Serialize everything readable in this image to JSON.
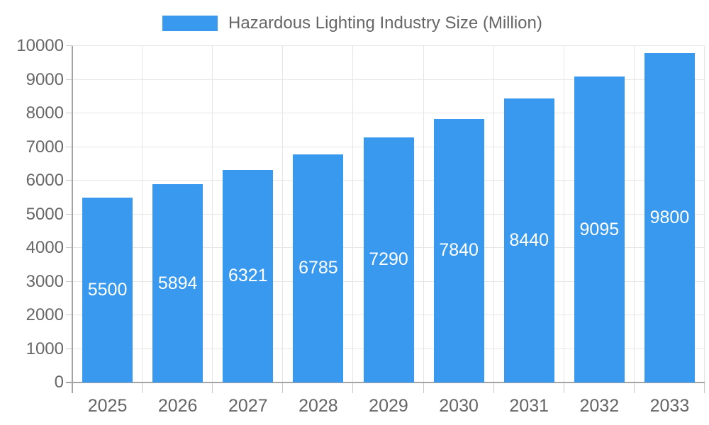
{
  "chart_data": {
    "type": "bar",
    "title": "Hazardous Lighting Industry Size (Million)",
    "categories": [
      "2025",
      "2026",
      "2027",
      "2028",
      "2029",
      "2030",
      "2031",
      "2032",
      "2033"
    ],
    "values": [
      5500,
      5894,
      6321,
      6785,
      7290,
      7840,
      8440,
      9095,
      9800
    ],
    "xlabel": "",
    "ylabel": "",
    "ylim": [
      0,
      10000
    ],
    "ytick_step": 1000,
    "ytick_labels": [
      "0",
      "1000",
      "2000",
      "3000",
      "4000",
      "5000",
      "6000",
      "7000",
      "8000",
      "9000",
      "10000"
    ],
    "grid": true,
    "legend_position": "top",
    "value_labels_inside_bars": true,
    "colors": {
      "bar": "#3999EE",
      "axis": "#A3A3A3",
      "grid": "#E6E6E6",
      "tick": "#C9C9C9",
      "axis_label": "#666666",
      "value_label": "#FFFFFF"
    }
  },
  "legend": {
    "label": "Hazardous Lighting Industry Size (Million)"
  }
}
